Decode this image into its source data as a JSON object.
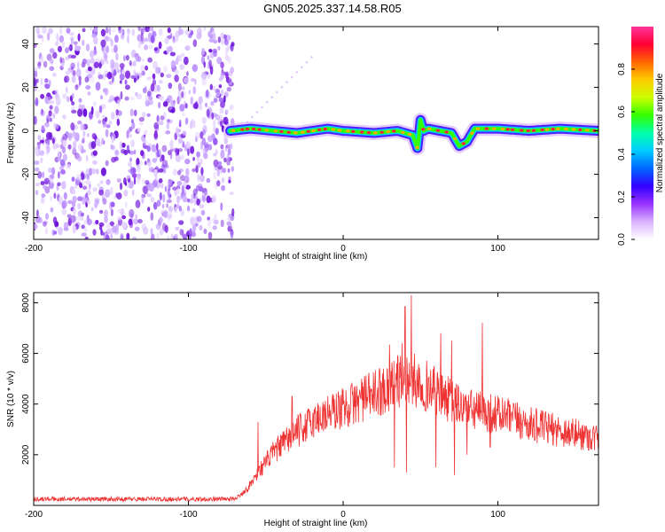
{
  "title": "GN05.2025.337.14.58.R05",
  "colors": {
    "snr_line": "#ee3333",
    "noise_speckle": "#7a1fe0",
    "colormap": [
      "#ffffff",
      "#d9b3ff",
      "#9933ff",
      "#3300ff",
      "#0066ff",
      "#00ccff",
      "#00ffaa",
      "#33ff00",
      "#ccff00",
      "#ffcc00",
      "#ff6600",
      "#ff0033",
      "#ff3399"
    ]
  },
  "chart_data": [
    {
      "type": "heatmap",
      "xlabel": "Height of straight line (km)",
      "ylabel": "Frequency (Hz)",
      "xlim": [
        -200,
        165
      ],
      "ylim": [
        -50,
        48
      ],
      "xticks": [
        "-200",
        "-100",
        "0",
        "100"
      ],
      "xtick_values": [
        -200,
        -100,
        0,
        100
      ],
      "yticks": [
        "40",
        "20",
        "0",
        "-20",
        "-40"
      ],
      "ytick_values": [
        40,
        20,
        0,
        -20,
        -40
      ],
      "noise_region_x": [
        -200,
        -71
      ],
      "signal_start_x": -73,
      "colorbar": {
        "label": "Normalized spectral amplitude",
        "ticks": [
          "0.0",
          "0.2",
          "0.4",
          "0.6",
          "0.8"
        ],
        "tick_values": [
          0.0,
          0.2,
          0.4,
          0.6,
          0.8
        ],
        "range": [
          0,
          1
        ]
      },
      "ridge_frequency": {
        "x": [
          -73,
          -60,
          -45,
          -30,
          -10,
          0,
          20,
          35,
          45,
          48,
          50,
          52,
          55,
          70,
          75,
          80,
          85,
          100,
          120,
          140,
          165
        ],
        "y": [
          0,
          1,
          0,
          -1,
          1,
          0,
          -1,
          0,
          -2,
          -8,
          5,
          0,
          1,
          -1,
          -7,
          -5,
          1,
          1,
          0,
          1,
          0
        ]
      }
    },
    {
      "type": "line",
      "xlabel": "Height of straight line (km)",
      "ylabel": "SNR (10 * v/v)",
      "xlim": [
        -200,
        165
      ],
      "ylim": [
        0,
        8400
      ],
      "xticks": [
        "-200",
        "-100",
        "0",
        "100"
      ],
      "xtick_values": [
        -200,
        -100,
        0,
        100
      ],
      "yticks": [
        "8000",
        "6000",
        "4000",
        "2000"
      ],
      "ytick_values": [
        8000,
        6000,
        4000,
        2000
      ],
      "envelope": {
        "x": [
          -200,
          -70,
          -62,
          -55,
          -45,
          -30,
          -15,
          0,
          15,
          30,
          40,
          50,
          60,
          70,
          80,
          100,
          120,
          140,
          165
        ],
        "y": [
          250,
          250,
          650,
          1300,
          2100,
          2900,
          3500,
          3850,
          4250,
          4700,
          5050,
          4850,
          4500,
          4100,
          3800,
          3600,
          3200,
          2950,
          2650
        ]
      },
      "spikes": [
        {
          "x": -55,
          "y": 3300
        },
        {
          "x": -33,
          "y": 4300
        },
        {
          "x": 12,
          "y": 5000
        },
        {
          "x": 30,
          "y": 6350
        },
        {
          "x": 33,
          "y": 7300
        },
        {
          "x": 38,
          "y": 6400
        },
        {
          "x": 40,
          "y": 7850
        },
        {
          "x": 44,
          "y": 8300
        },
        {
          "x": 63,
          "y": 6800
        },
        {
          "x": 70,
          "y": 6500
        },
        {
          "x": 90,
          "y": 7200
        }
      ],
      "dips": [
        {
          "x": 33,
          "y": 1500
        },
        {
          "x": 41,
          "y": 1300
        },
        {
          "x": 60,
          "y": 1500
        },
        {
          "x": 72,
          "y": 1200
        },
        {
          "x": 80,
          "y": 2000
        },
        {
          "x": 95,
          "y": 2300
        }
      ]
    }
  ]
}
